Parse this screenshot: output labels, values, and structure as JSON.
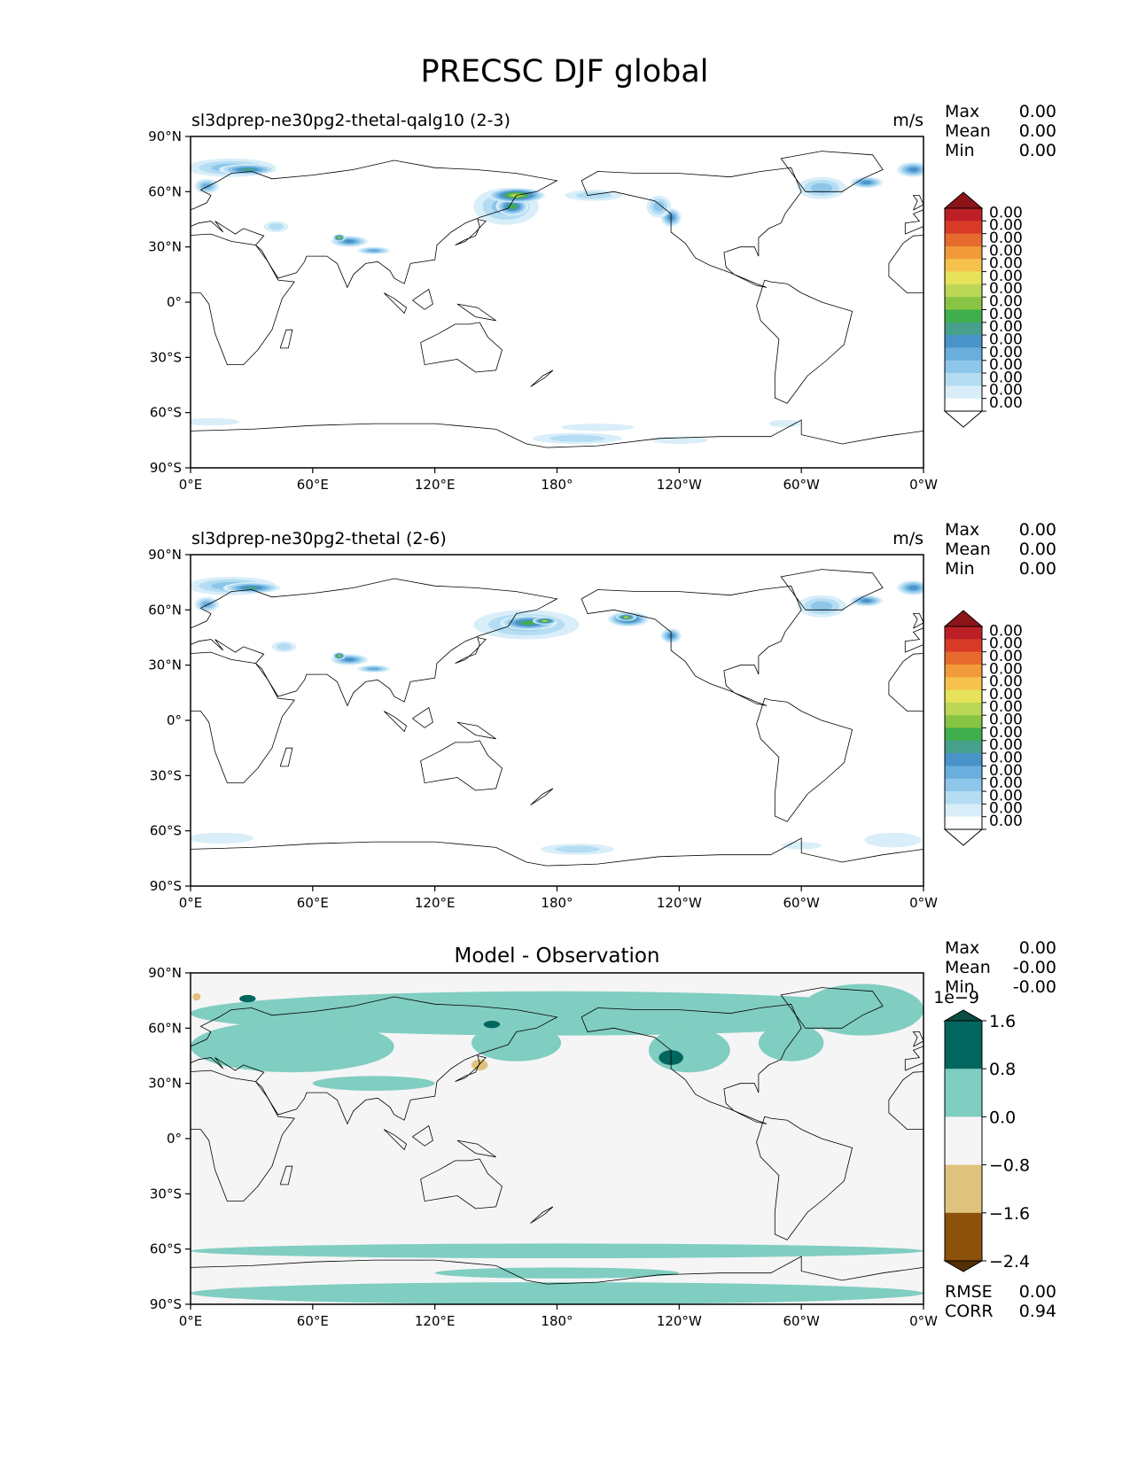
{
  "figure": {
    "title": "PRECSC DJF global"
  },
  "chart_data": [
    {
      "type": "heatmap",
      "title": "sl3dprep-ne30pg2-thetal-qalg10 (2-3)",
      "units": "m/s",
      "stats": [
        {
          "label": "Max",
          "value": "0.00"
        },
        {
          "label": "Mean",
          "value": "0.00"
        },
        {
          "label": "Min",
          "value": "0.00"
        }
      ],
      "x_ticks": [
        "0°E",
        "60°E",
        "120°E",
        "180°",
        "120°W",
        "60°W",
        "0°W"
      ],
      "y_ticks": [
        "90°N",
        "60°N",
        "30°N",
        "0°",
        "30°S",
        "60°S",
        "90°S"
      ],
      "colorbar": {
        "tick_labels": [
          "0.00",
          "0.00",
          "0.00",
          "0.00",
          "0.00",
          "0.00",
          "0.00",
          "0.00",
          "0.00",
          "0.00",
          "0.00",
          "0.00",
          "0.00",
          "0.00",
          "0.00",
          "0.00"
        ],
        "colors": [
          "#ffffff",
          "#d9eef9",
          "#b4ddf3",
          "#8ec6ea",
          "#6aaedd",
          "#4a93c8",
          "#47a08c",
          "#3fae4c",
          "#88c444",
          "#bbd755",
          "#e6e25a",
          "#f6c24c",
          "#f19a3a",
          "#e76a2e",
          "#d83a27",
          "#bd1f26",
          "#8c1419"
        ]
      },
      "features": [
        {
          "lon": 20,
          "lat": 73,
          "rx": 22,
          "ry": 5,
          "intensity": 3
        },
        {
          "lon": 28,
          "lat": 72,
          "rx": 14,
          "ry": 3,
          "intensity": 6
        },
        {
          "lon": 8,
          "lat": 63,
          "rx": 6,
          "ry": 4,
          "intensity": 4
        },
        {
          "lon": 42,
          "lat": 41,
          "rx": 6,
          "ry": 3,
          "intensity": 2
        },
        {
          "lon": 78,
          "lat": 33,
          "rx": 9,
          "ry": 3,
          "intensity": 5
        },
        {
          "lon": 73,
          "lat": 35,
          "rx": 3,
          "ry": 2,
          "intensity": 9
        },
        {
          "lon": 90,
          "lat": 28,
          "rx": 8,
          "ry": 2,
          "intensity": 4
        },
        {
          "lon": 155,
          "lat": 52,
          "rx": 16,
          "ry": 10,
          "intensity": 3
        },
        {
          "lon": 158,
          "lat": 52,
          "rx": 8,
          "ry": 5,
          "intensity": 7
        },
        {
          "lon": 160,
          "lat": 58,
          "rx": 14,
          "ry": 4,
          "intensity": 9
        },
        {
          "lon": 198,
          "lat": 58,
          "rx": 14,
          "ry": 3,
          "intensity": 2
        },
        {
          "lon": 236,
          "lat": 46,
          "rx": 5,
          "ry": 5,
          "intensity": 5
        },
        {
          "lon": 230,
          "lat": 52,
          "rx": 6,
          "ry": 6,
          "intensity": 3
        },
        {
          "lon": 310,
          "lat": 62,
          "rx": 12,
          "ry": 6,
          "intensity": 3
        },
        {
          "lon": 332,
          "lat": 65,
          "rx": 8,
          "ry": 3,
          "intensity": 5
        },
        {
          "lon": 355,
          "lat": 72,
          "rx": 8,
          "ry": 4,
          "intensity": 5
        },
        {
          "lon": 10,
          "lat": -65,
          "rx": 14,
          "ry": 2,
          "intensity": 1
        },
        {
          "lon": 190,
          "lat": -74,
          "rx": 22,
          "ry": 3,
          "intensity": 2
        },
        {
          "lon": 200,
          "lat": -68,
          "rx": 18,
          "ry": 2,
          "intensity": 1
        },
        {
          "lon": 240,
          "lat": -75,
          "rx": 14,
          "ry": 2,
          "intensity": 1
        },
        {
          "lon": 292,
          "lat": -66,
          "rx": 8,
          "ry": 2,
          "intensity": 1
        }
      ]
    },
    {
      "type": "heatmap",
      "title": "sl3dprep-ne30pg2-thetal (2-6)",
      "units": "m/s",
      "stats": [
        {
          "label": "Max",
          "value": "0.00"
        },
        {
          "label": "Mean",
          "value": "0.00"
        },
        {
          "label": "Min",
          "value": "0.00"
        }
      ],
      "x_ticks": [
        "0°E",
        "60°E",
        "120°E",
        "180°",
        "120°W",
        "60°W",
        "0°W"
      ],
      "y_ticks": [
        "90°N",
        "60°N",
        "30°N",
        "0°",
        "30°S",
        "60°S",
        "90°S"
      ],
      "colorbar": {
        "tick_labels": [
          "0.00",
          "0.00",
          "0.00",
          "0.00",
          "0.00",
          "0.00",
          "0.00",
          "0.00",
          "0.00",
          "0.00",
          "0.00",
          "0.00",
          "0.00",
          "0.00",
          "0.00",
          "0.00"
        ],
        "colors": [
          "#ffffff",
          "#d9eef9",
          "#b4ddf3",
          "#8ec6ea",
          "#6aaedd",
          "#4a93c8",
          "#47a08c",
          "#3fae4c",
          "#88c444",
          "#bbd755",
          "#e6e25a",
          "#f6c24c",
          "#f19a3a",
          "#e76a2e",
          "#d83a27",
          "#bd1f26",
          "#8c1419"
        ]
      },
      "features": [
        {
          "lon": 20,
          "lat": 73,
          "rx": 22,
          "ry": 5,
          "intensity": 3
        },
        {
          "lon": 30,
          "lat": 72,
          "rx": 14,
          "ry": 3,
          "intensity": 6
        },
        {
          "lon": 8,
          "lat": 63,
          "rx": 6,
          "ry": 4,
          "intensity": 4
        },
        {
          "lon": 46,
          "lat": 40,
          "rx": 6,
          "ry": 3,
          "intensity": 2
        },
        {
          "lon": 78,
          "lat": 33,
          "rx": 9,
          "ry": 3,
          "intensity": 5
        },
        {
          "lon": 73,
          "lat": 35,
          "rx": 3,
          "ry": 2,
          "intensity": 9
        },
        {
          "lon": 90,
          "lat": 28,
          "rx": 8,
          "ry": 2,
          "intensity": 4
        },
        {
          "lon": 165,
          "lat": 52,
          "rx": 26,
          "ry": 8,
          "intensity": 3
        },
        {
          "lon": 166,
          "lat": 53,
          "rx": 14,
          "ry": 4,
          "intensity": 7
        },
        {
          "lon": 174,
          "lat": 54,
          "rx": 6,
          "ry": 2,
          "intensity": 9
        },
        {
          "lon": 215,
          "lat": 55,
          "rx": 10,
          "ry": 4,
          "intensity": 7
        },
        {
          "lon": 214,
          "lat": 56,
          "rx": 5,
          "ry": 2,
          "intensity": 9
        },
        {
          "lon": 236,
          "lat": 46,
          "rx": 5,
          "ry": 4,
          "intensity": 5
        },
        {
          "lon": 310,
          "lat": 62,
          "rx": 12,
          "ry": 6,
          "intensity": 3
        },
        {
          "lon": 332,
          "lat": 65,
          "rx": 8,
          "ry": 3,
          "intensity": 5
        },
        {
          "lon": 355,
          "lat": 72,
          "rx": 8,
          "ry": 4,
          "intensity": 5
        },
        {
          "lon": 15,
          "lat": -64,
          "rx": 16,
          "ry": 3,
          "intensity": 1
        },
        {
          "lon": 190,
          "lat": -70,
          "rx": 18,
          "ry": 3,
          "intensity": 2
        },
        {
          "lon": 345,
          "lat": -65,
          "rx": 14,
          "ry": 4,
          "intensity": 1
        },
        {
          "lon": 300,
          "lat": -68,
          "rx": 10,
          "ry": 2,
          "intensity": 1
        }
      ]
    },
    {
      "type": "heatmap",
      "title": "Model - Observation",
      "units": "",
      "stats": [
        {
          "label": "Max",
          "value": "0.00"
        },
        {
          "label": "Mean",
          "value": "-0.00"
        },
        {
          "label": "Min",
          "value": "-0.00"
        }
      ],
      "x_ticks": [
        "0°E",
        "60°E",
        "120°E",
        "180°",
        "120°W",
        "60°W",
        "0°W"
      ],
      "y_ticks": [
        "90°N",
        "60°N",
        "30°N",
        "0°",
        "30°S",
        "60°S",
        "90°S"
      ],
      "colorbar": {
        "offset_label": "1e−9",
        "tick_labels": [
          "1.6",
          "0.8",
          "0.0",
          "−0.8",
          "−1.6",
          "−2.4"
        ],
        "colors": [
          "#0a4d41",
          "#01665e",
          "#80cdc1",
          "#f5f5f5",
          "#dfc27d",
          "#8c510a",
          "#543005"
        ]
      },
      "bottom_stats": [
        {
          "label": "RMSE",
          "value": "0.00"
        },
        {
          "label": "CORR",
          "value": "0.94"
        }
      ],
      "features": [
        {
          "lon": 180,
          "lat": 68,
          "rx": 180,
          "ry": 12,
          "intensity": 2
        },
        {
          "lon": 50,
          "lat": 50,
          "rx": 50,
          "ry": 14,
          "intensity": 2
        },
        {
          "lon": 160,
          "lat": 52,
          "rx": 22,
          "ry": 10,
          "intensity": 2
        },
        {
          "lon": 245,
          "lat": 48,
          "rx": 20,
          "ry": 12,
          "intensity": 2
        },
        {
          "lon": 295,
          "lat": 52,
          "rx": 16,
          "ry": 10,
          "intensity": 2
        },
        {
          "lon": 330,
          "lat": 70,
          "rx": 30,
          "ry": 14,
          "intensity": 2
        },
        {
          "lon": 90,
          "lat": 30,
          "rx": 30,
          "ry": 4,
          "intensity": 2
        },
        {
          "lon": 180,
          "lat": -61,
          "rx": 180,
          "ry": 4,
          "intensity": 2
        },
        {
          "lon": 180,
          "lat": -84,
          "rx": 180,
          "ry": 6,
          "intensity": 2
        },
        {
          "lon": 180,
          "lat": -73,
          "rx": 60,
          "ry": 3,
          "intensity": 2
        },
        {
          "lon": 236,
          "lat": 44,
          "rx": 6,
          "ry": 4,
          "intensity": 1
        },
        {
          "lon": 28,
          "lat": 76,
          "rx": 4,
          "ry": 2,
          "intensity": 1
        },
        {
          "lon": 148,
          "lat": 62,
          "rx": 4,
          "ry": 2,
          "intensity": 1
        },
        {
          "lon": 142,
          "lat": 40,
          "rx": 4,
          "ry": 3,
          "intensity": 4
        },
        {
          "lon": 3,
          "lat": 77,
          "rx": 2,
          "ry": 2,
          "intensity": 4
        }
      ]
    }
  ]
}
